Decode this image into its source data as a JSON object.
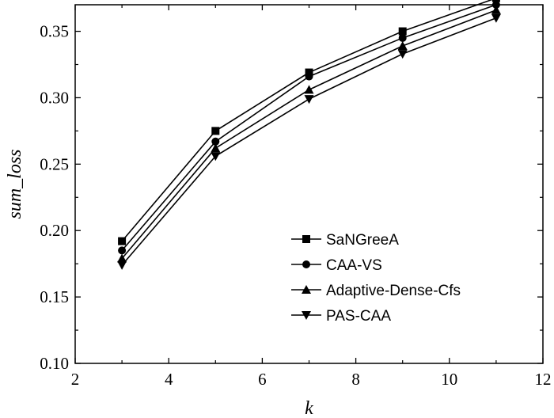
{
  "chart_data": {
    "type": "line",
    "xlabel": "k",
    "ylabel": "sum_loss",
    "xlim": [
      2,
      12
    ],
    "ylim": [
      0.1,
      0.37
    ],
    "xticks": [
      2,
      4,
      6,
      8,
      10,
      12
    ],
    "xtick_labels": [
      "2",
      "4",
      "6",
      "8",
      "10",
      "12"
    ],
    "yticks": [
      0.1,
      0.15,
      0.2,
      0.25,
      0.3,
      0.35
    ],
    "ytick_labels": [
      "0.10",
      "0.15",
      "0.20",
      "0.25",
      "0.30",
      "0.35"
    ],
    "grid": false,
    "legend_position": "bottom-right",
    "x": [
      3,
      5,
      7,
      9,
      11
    ],
    "series": [
      {
        "name": "SaNGreeA",
        "marker": "square",
        "values": [
          0.192,
          0.275,
          0.319,
          0.35,
          0.375
        ]
      },
      {
        "name": "CAA-VS",
        "marker": "circle",
        "values": [
          0.185,
          0.267,
          0.316,
          0.345,
          0.37
        ]
      },
      {
        "name": "Adaptive-Dense-Cfs",
        "marker": "triangle-up",
        "values": [
          0.179,
          0.262,
          0.306,
          0.339,
          0.366
        ]
      },
      {
        "name": "PAS-CAA",
        "marker": "triangle-down",
        "values": [
          0.174,
          0.256,
          0.299,
          0.333,
          0.36
        ]
      }
    ]
  }
}
